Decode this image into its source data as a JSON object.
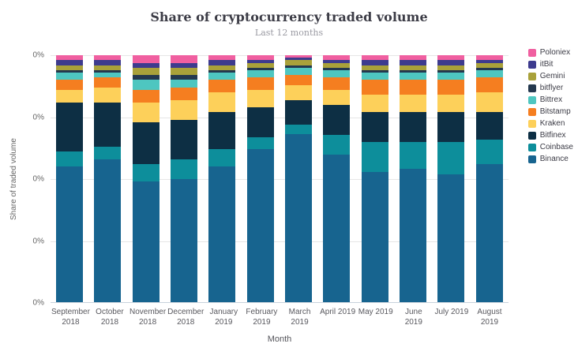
{
  "page": {
    "background": "#ffffff"
  },
  "chart_data": {
    "type": "bar",
    "stacked": true,
    "title": "Share of cryptocurrency traded volume",
    "subtitle": "Last 12 months",
    "xlabel": "Month",
    "ylabel": "Share of traded volume",
    "ylim": [
      0,
      100
    ],
    "grid": true,
    "legend_position": "right",
    "ytick_labels": [
      "0%",
      "0%",
      "0%",
      "0%",
      "0%"
    ],
    "categories": [
      "September 2018",
      "October 2018",
      "November 2018",
      "December 2018",
      "January 2019",
      "February 2019",
      "March 2019",
      "April 2019",
      "May 2019",
      "June 2019",
      "July 2019",
      "August 2019"
    ],
    "series": [
      {
        "name": "Binance",
        "color": "#17648f",
        "values": [
          55,
          58,
          49,
          50,
          55,
          62,
          68,
          60,
          53,
          54,
          52,
          56
        ]
      },
      {
        "name": "Coinbase",
        "color": "#0d8e9b",
        "values": [
          6,
          5,
          7,
          8,
          7,
          5,
          4,
          8,
          12,
          11,
          13,
          10
        ]
      },
      {
        "name": "Bitfinex",
        "color": "#0d2f44",
        "values": [
          20,
          18,
          17,
          16,
          15,
          12,
          10,
          12,
          12,
          12,
          12,
          11
        ]
      },
      {
        "name": "Kraken",
        "color": "#fdd05a",
        "values": [
          5,
          6,
          8,
          8,
          8,
          7,
          6,
          6,
          7,
          7,
          7,
          8
        ]
      },
      {
        "name": "Bitstamp",
        "color": "#f57e20",
        "values": [
          4,
          4,
          5,
          5,
          5,
          5,
          4,
          5,
          6,
          6,
          6,
          6
        ]
      },
      {
        "name": "Bittrex",
        "color": "#4ec6c0",
        "values": [
          3,
          2,
          4,
          3,
          3,
          3,
          3,
          3,
          3,
          3,
          3,
          3
        ]
      },
      {
        "name": "bitflyer",
        "color": "#24384e",
        "values": [
          1,
          1,
          2,
          2,
          1,
          1,
          1,
          1,
          1,
          1,
          1,
          1
        ]
      },
      {
        "name": "Gemini",
        "color": "#a9a13a",
        "values": [
          2,
          2,
          3,
          3,
          2,
          2,
          2,
          2,
          2,
          2,
          2,
          2
        ]
      },
      {
        "name": "itBit",
        "color": "#3d3b8e",
        "values": [
          2,
          2,
          2,
          2,
          2,
          1,
          1,
          1,
          2,
          2,
          2,
          1
        ]
      },
      {
        "name": "Poloniex",
        "color": "#f05fa0",
        "values": [
          2,
          2,
          3,
          3,
          2,
          2,
          1,
          2,
          2,
          2,
          2,
          2
        ]
      }
    ]
  }
}
